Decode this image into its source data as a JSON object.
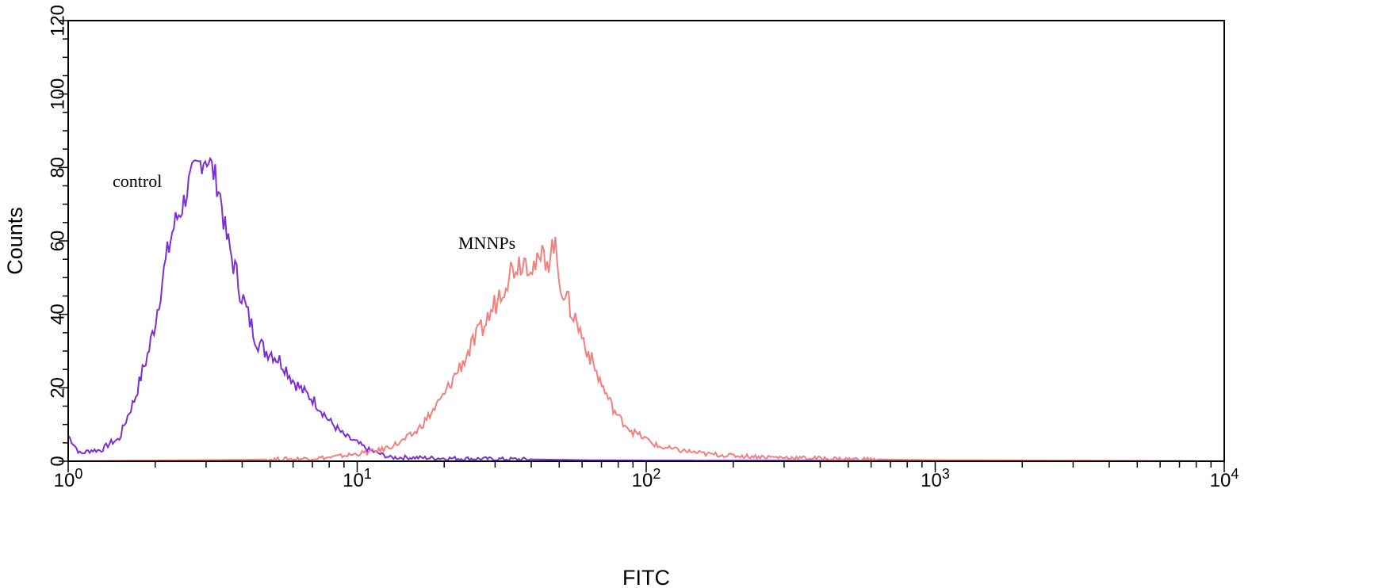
{
  "chart_data": {
    "type": "line",
    "title": "",
    "xlabel": "FITC",
    "ylabel": "Counts",
    "xscale": "log",
    "xlim": [
      1,
      10000
    ],
    "ylim": [
      0,
      120
    ],
    "x_ticks": [
      {
        "base": "10",
        "exp": "0"
      },
      {
        "base": "10",
        "exp": "1"
      },
      {
        "base": "10",
        "exp": "2"
      },
      {
        "base": "10",
        "exp": "3"
      },
      {
        "base": "10",
        "exp": "4"
      }
    ],
    "y_ticks": [
      "0",
      "20",
      "40",
      "60",
      "80",
      "100",
      "120"
    ],
    "grid": false,
    "legend": "none",
    "series": [
      {
        "name": "control",
        "color": "#7b2fd6",
        "x": [
          1.0,
          1.1,
          1.2,
          1.3,
          1.4,
          1.5,
          1.6,
          1.7,
          1.8,
          1.9,
          2.0,
          2.1,
          2.2,
          2.3,
          2.4,
          2.5,
          2.6,
          2.7,
          2.8,
          2.9,
          3.0,
          3.1,
          3.2,
          3.3,
          3.4,
          3.5,
          3.7,
          3.9,
          4.1,
          4.3,
          4.5,
          4.8,
          5.0,
          5.3,
          5.6,
          6.0,
          6.5,
          7.0,
          7.5,
          8.0,
          8.5,
          9.0,
          10.0,
          11.0,
          12.0,
          13.0,
          15.0,
          20.0,
          30.0,
          40.0,
          60.0,
          100.0,
          10000.0
        ],
        "y": [
          7,
          2,
          3,
          3,
          5,
          6,
          12,
          17,
          24,
          30,
          38,
          48,
          56,
          63,
          67,
          70,
          75,
          78,
          80,
          82,
          83,
          81,
          78,
          75,
          70,
          62,
          55,
          48,
          42,
          37,
          33,
          30,
          30,
          28,
          26,
          22,
          19,
          17,
          14,
          11,
          9,
          7,
          5,
          3,
          2,
          1,
          1,
          0.8,
          0.6,
          0.5,
          0.3,
          0.2,
          0
        ],
        "annotation": "control"
      },
      {
        "name": "MNNPs",
        "color": "#f47f7f",
        "x": [
          1.0,
          4.0,
          6.0,
          8.0,
          10.0,
          12.0,
          14.0,
          16.0,
          18.0,
          20.0,
          22.0,
          24.0,
          26.0,
          28.0,
          30.0,
          32.0,
          34.0,
          36.0,
          38.0,
          40.0,
          42.0,
          44.0,
          46.0,
          48.0,
          50.0,
          53.0,
          56.0,
          60.0,
          65.0,
          70.0,
          75.0,
          80.0,
          90.0,
          100.0,
          110.0,
          130.0,
          160.0,
          200.0,
          300.0,
          500.0,
          1000.0,
          10000.0
        ],
        "y": [
          0,
          0.4,
          0.6,
          1,
          2,
          3,
          5,
          8,
          13,
          18,
          24,
          29,
          34,
          38,
          43,
          48,
          52,
          54,
          55,
          54,
          53,
          56,
          55,
          60,
          50,
          44,
          40,
          34,
          27,
          21,
          16,
          12,
          8,
          6,
          4,
          3,
          2,
          1.5,
          1,
          0.6,
          0.3,
          0
        ],
        "annotation": "MNNPs"
      }
    ]
  }
}
